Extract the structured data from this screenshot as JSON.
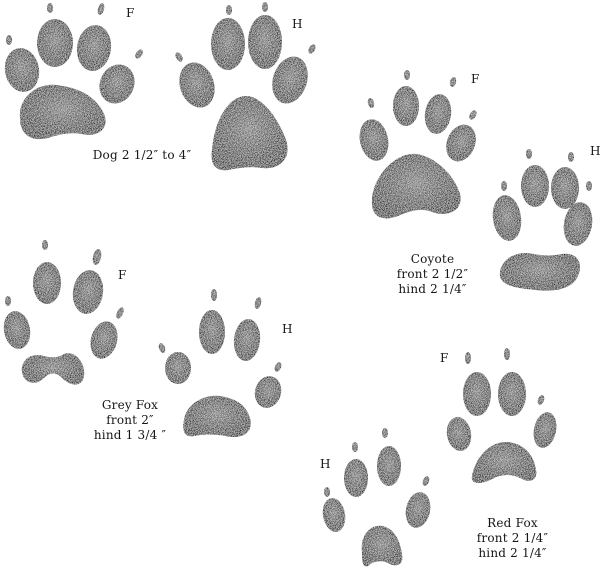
{
  "markers": {
    "front": "F",
    "hind": "H"
  },
  "tracks": [
    {
      "id": "dog",
      "lines": [
        "Dog 2 1/2″ to 4″"
      ]
    },
    {
      "id": "coyote",
      "lines": [
        "Coyote",
        "front 2 1/2″",
        "hind 2 1/4″"
      ]
    },
    {
      "id": "grey-fox",
      "lines": [
        "Grey Fox",
        "front 2″",
        "hind 1 3/4 ″"
      ]
    },
    {
      "id": "red-fox",
      "lines": [
        "Red Fox",
        "front 2 1/4″",
        "hind 2 1/4″"
      ]
    }
  ],
  "colors": {
    "ink": "#151515",
    "paper": "#ffffff"
  }
}
